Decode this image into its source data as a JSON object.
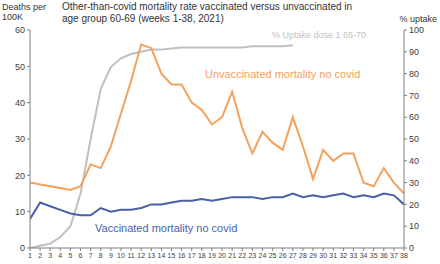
{
  "chart_data": {
    "type": "line",
    "title": "Other-than-covid mortality rate vaccinated versus unvaccinated in age group 60-69 (weeks 1-38, 2021)",
    "y_label": "Deaths per 100K",
    "y2_label": "% uptake",
    "x": [
      1,
      2,
      3,
      4,
      5,
      6,
      7,
      8,
      9,
      10,
      11,
      12,
      13,
      14,
      15,
      16,
      17,
      18,
      19,
      20,
      21,
      22,
      23,
      24,
      25,
      26,
      27,
      28,
      29,
      30,
      31,
      32,
      33,
      34,
      35,
      36,
      37,
      38
    ],
    "xlim": [
      1,
      38
    ],
    "xticks": [
      1,
      2,
      3,
      4,
      5,
      6,
      7,
      8,
      9,
      10,
      11,
      12,
      13,
      14,
      15,
      16,
      17,
      18,
      19,
      20,
      21,
      22,
      23,
      24,
      25,
      26,
      27,
      28,
      29,
      30,
      31,
      32,
      33,
      34,
      35,
      36,
      37,
      38
    ],
    "ylim": [
      0,
      60
    ],
    "yticks": [
      0,
      10,
      20,
      30,
      40,
      50,
      60
    ],
    "y2lim": [
      0,
      100
    ],
    "y2ticks": [
      0,
      10,
      20,
      30,
      40,
      50,
      60,
      70,
      80,
      90,
      100
    ],
    "grid": false,
    "series": [
      {
        "name": "% Uptake dose 1 65-70",
        "color": "#bfbfbf",
        "axis": "y2",
        "values": [
          0,
          1,
          2,
          5,
          10,
          25,
          50,
          73,
          83,
          87,
          89,
          90,
          91,
          91,
          91.5,
          92,
          92,
          92,
          92,
          92,
          92,
          92,
          92.5,
          92.5,
          92.5,
          92.5,
          93,
          null,
          null,
          null,
          null,
          null,
          null,
          null,
          null,
          null,
          null,
          null
        ]
      },
      {
        "name": "Unvaccinated mortality no covid",
        "color": "#f4a15d",
        "values": [
          18,
          17.5,
          17,
          16.5,
          16,
          17,
          23,
          22,
          28,
          37,
          46,
          56,
          55,
          48,
          45,
          45,
          40,
          38,
          34,
          36,
          43,
          33,
          26,
          32,
          29,
          27,
          36,
          28,
          19,
          27,
          24,
          26,
          26,
          18,
          17,
          22,
          18,
          15
        ]
      },
      {
        "name": "Vaccinated mortality no covid",
        "color": "#4a5fa8",
        "values": [
          8,
          12.5,
          11.5,
          10.5,
          9.5,
          9,
          9,
          11,
          10,
          10.5,
          10.5,
          11,
          12,
          12,
          12.5,
          13,
          13,
          13.5,
          13,
          13.5,
          14,
          14,
          14,
          13.5,
          14,
          14,
          15,
          14,
          14.5,
          14,
          14.5,
          15,
          14,
          14.5,
          14,
          15,
          14.5,
          12
        ]
      }
    ]
  }
}
